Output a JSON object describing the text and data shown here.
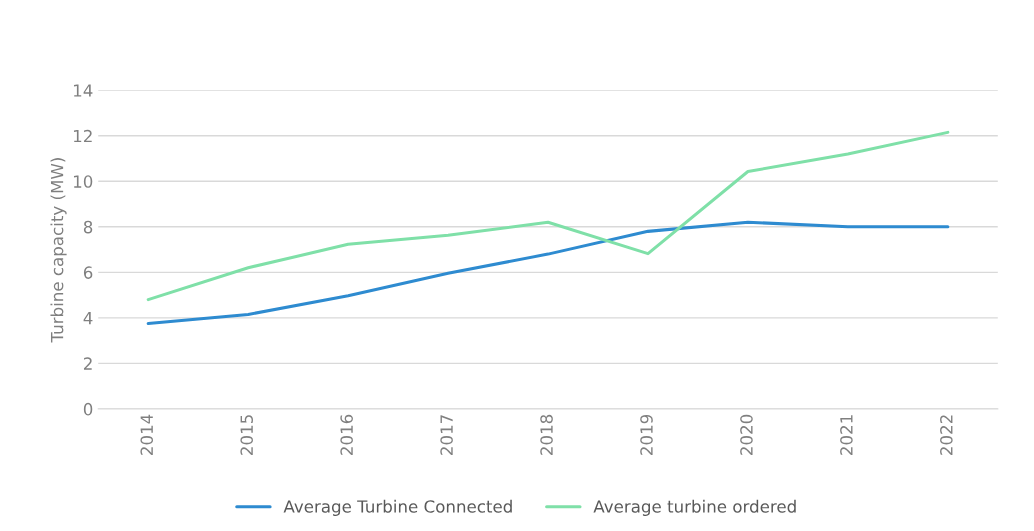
{
  "chart_data": {
    "type": "line",
    "ylabel": "Turbine capacity (MW)",
    "categories": [
      "2014",
      "2015",
      "2016",
      "2017",
      "2018",
      "2019",
      "2020",
      "2021",
      "2022"
    ],
    "series": [
      {
        "name": "Average Turbine Connected",
        "color": "#2e8bd0",
        "values": [
          3.75,
          4.15,
          4.97,
          5.96,
          6.8,
          7.8,
          8.2,
          8.0,
          8.0
        ]
      },
      {
        "name": "Average turbine ordered",
        "color": "#7fe0a8",
        "values": [
          4.8,
          6.2,
          7.23,
          7.63,
          8.2,
          6.82,
          10.43,
          11.2,
          12.15
        ]
      }
    ],
    "ylim": [
      0,
      14
    ],
    "yticks": [
      0,
      2,
      4,
      6,
      8,
      10,
      12,
      14
    ],
    "grid": "y",
    "legend": "bottom",
    "marker": "none",
    "line_style": "solid"
  }
}
